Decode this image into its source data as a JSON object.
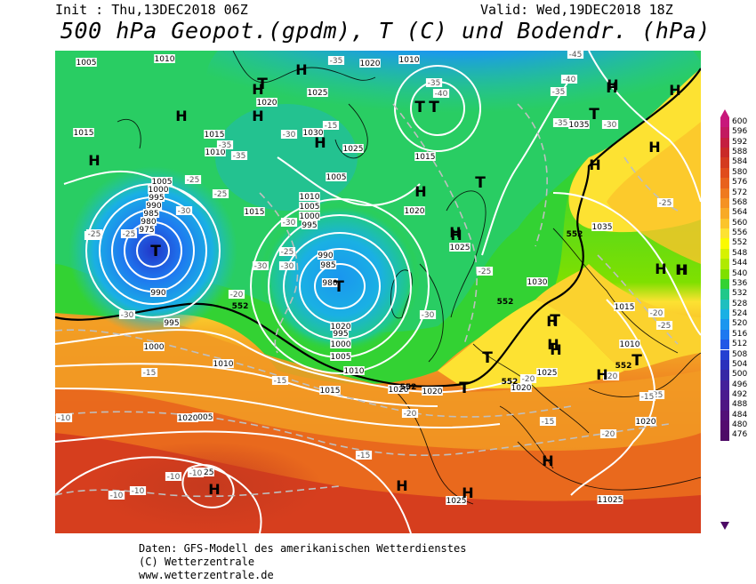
{
  "header": {
    "init": "Init : Thu,13DEC2018 06Z",
    "valid": "Valid: Wed,19DEC2018 18Z",
    "title": "500 hPa Geopot.(gpdm), T (C) und Bodendr. (hPa)"
  },
  "footer": {
    "line1": "Daten: GFS-Modell des amerikanischen Wetterdienstes",
    "line2": "(C) Wetterzentrale",
    "line3": "www.wetterzentrale.de"
  },
  "legend": {
    "values": [
      "600",
      "596",
      "592",
      "588",
      "584",
      "580",
      "576",
      "572",
      "568",
      "564",
      "560",
      "556",
      "552",
      "548",
      "544",
      "540",
      "536",
      "532",
      "528",
      "524",
      "520",
      "516",
      "512",
      "508",
      "504",
      "500",
      "496",
      "492",
      "488",
      "484",
      "480",
      "476"
    ],
    "colors": [
      "#c8177b",
      "#c21a60",
      "#c41f40",
      "#c92a28",
      "#d43a1f",
      "#e04c1c",
      "#e8621c",
      "#ef7a1f",
      "#f59222",
      "#f8aa26",
      "#fbc42b",
      "#fde232",
      "#fbfa00",
      "#d6f200",
      "#b0ea00",
      "#7fe000",
      "#33d233",
      "#20c88a",
      "#1fbfbf",
      "#1ab0e4",
      "#1a96ef",
      "#1e78f0",
      "#2158e6",
      "#2440d2",
      "#2a30bc",
      "#3628a5",
      "#43209a",
      "#4a1a8f",
      "#4e1583",
      "#521078",
      "#540b6f",
      "#4d0a66"
    ]
  },
  "map": {
    "pressure_labels": [
      "1005",
      "1010",
      "1020",
      "1010",
      "1025",
      "1020",
      "1015",
      "1015",
      "1030",
      "1025",
      "1005",
      "1010",
      "1015",
      "1005",
      "1000",
      "995",
      "990",
      "985",
      "980",
      "975",
      "1015",
      "1010",
      "1005",
      "1000",
      "995",
      "990",
      "985",
      "980",
      "1020",
      "1020",
      "1025",
      "1030",
      "1035",
      "1035",
      "1015",
      "1010",
      "990",
      "995",
      "1000",
      "995",
      "1000",
      "1005",
      "1010",
      "1015",
      "1010",
      "1005",
      "1020",
      "1025",
      "1025",
      "1020",
      "1020",
      "1020",
      "1025",
      "1020",
      "11025"
    ],
    "temp_labels": [
      "-35",
      "-35",
      "-40",
      "-45",
      "-35",
      "-40",
      "-35",
      "-30",
      "-35",
      "-15",
      "-25",
      "-30",
      "-35",
      "-25",
      "-25",
      "-25",
      "-30",
      "-25",
      "-30",
      "-30",
      "-25",
      "-30",
      "-25",
      "-30",
      "-20",
      "-20",
      "-30",
      "-25",
      "-25",
      "-15",
      "-15",
      "-10",
      "-10",
      "-20",
      "-15",
      "-15",
      "-20",
      "-20",
      "-20",
      "-15",
      "-10",
      "-10",
      "-10",
      "-10",
      "-25"
    ],
    "contour_values": [
      "552",
      "552",
      "552",
      "552",
      "552",
      "552"
    ],
    "high_markers": [
      "H",
      "H",
      "H",
      "H",
      "H",
      "H",
      "H",
      "H",
      "H",
      "H",
      "H",
      "H",
      "H",
      "H",
      "H",
      "H",
      "H",
      "H",
      "H",
      "H",
      "H",
      "H",
      "H",
      "H",
      "H"
    ],
    "low_markers": [
      "T",
      "T",
      "T",
      "T",
      "T",
      "T",
      "T",
      "T",
      "T",
      "T",
      "T"
    ]
  }
}
